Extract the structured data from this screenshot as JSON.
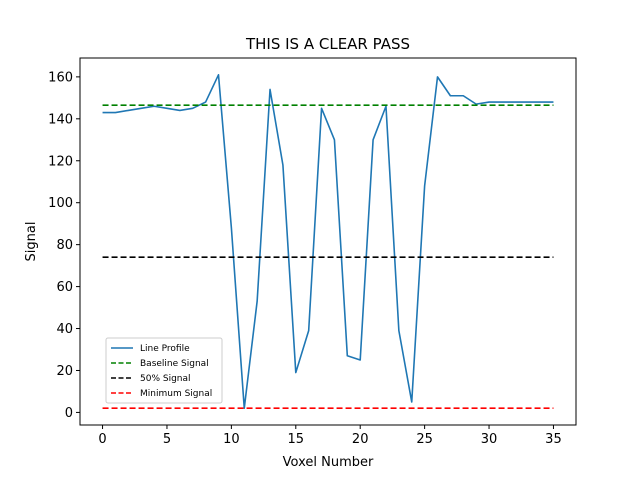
{
  "chart_data": {
    "type": "line",
    "title": "THIS IS A CLEAR PASS",
    "xlabel": "Voxel Number",
    "ylabel": "Signal",
    "xlim": [
      -1.75,
      36.75
    ],
    "ylim": [
      -6,
      169
    ],
    "xticks": [
      0,
      5,
      10,
      15,
      20,
      25,
      30,
      35
    ],
    "yticks": [
      0,
      20,
      40,
      60,
      80,
      100,
      120,
      140,
      160
    ],
    "grid": false,
    "legend_position": "lower-left",
    "series": [
      {
        "name": "Line Profile",
        "style": "solid",
        "color": "#1f77b4",
        "x": [
          0,
          1,
          2,
          3,
          4,
          5,
          6,
          7,
          8,
          9,
          10,
          11,
          12,
          13,
          14,
          15,
          16,
          17,
          18,
          19,
          20,
          21,
          22,
          23,
          24,
          25,
          26,
          27,
          28,
          29,
          30,
          31,
          32,
          33,
          34,
          35
        ],
        "y": [
          143,
          143,
          144,
          145,
          146,
          145,
          144,
          145,
          148,
          161,
          88,
          2,
          53,
          154,
          118,
          19,
          39,
          145,
          130,
          27,
          25,
          130,
          146,
          39,
          5,
          108,
          160,
          151,
          151,
          147,
          148,
          148,
          148,
          148,
          148,
          148
        ]
      },
      {
        "name": "Baseline Signal",
        "style": "dashed",
        "color": "#008000",
        "x": [
          0,
          35
        ],
        "y": [
          146.5,
          146.5
        ]
      },
      {
        "name": "50% Signal",
        "style": "dashed",
        "color": "#000000",
        "x": [
          0,
          35
        ],
        "y": [
          74,
          74
        ]
      },
      {
        "name": "Minimum Signal",
        "style": "dashed",
        "color": "#ff0000",
        "x": [
          0,
          35
        ],
        "y": [
          2,
          2
        ]
      }
    ]
  }
}
